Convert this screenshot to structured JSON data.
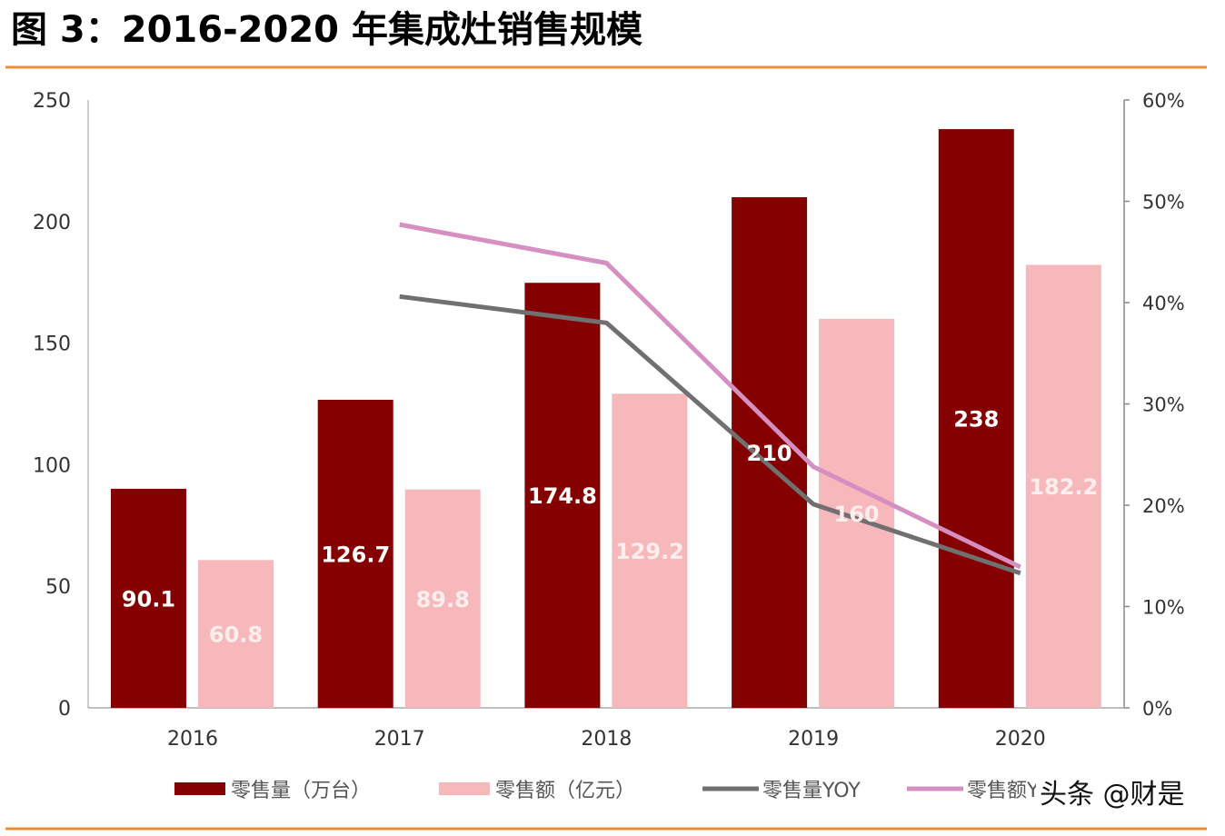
{
  "chart_data": {
    "type": "bar",
    "title": "图 3：2016-2020 年集成灶销售规模",
    "categories": [
      "2016",
      "2017",
      "2018",
      "2019",
      "2020"
    ],
    "y_left": {
      "range": [
        0,
        250
      ],
      "ticks": [
        "0",
        "50",
        "100",
        "150",
        "200",
        "250"
      ]
    },
    "y_right": {
      "range": [
        0,
        60
      ],
      "ticks": [
        "0%",
        "10%",
        "20%",
        "30%",
        "40%",
        "50%",
        "60%"
      ]
    },
    "series": [
      {
        "name": "零售量（万台）",
        "kind": "bar",
        "axis": "left",
        "color": "#850000",
        "values": [
          90.1,
          126.7,
          174.8,
          210,
          238
        ],
        "labels": [
          "90.1",
          "126.7",
          "174.8",
          "210",
          "238"
        ]
      },
      {
        "name": "零售额（亿元）",
        "kind": "bar",
        "axis": "left",
        "color": "#f7b8bb",
        "values": [
          60.8,
          89.8,
          129.2,
          160,
          182.2
        ],
        "labels": [
          "60.8",
          "89.8",
          "129.2",
          "160",
          "182.2"
        ]
      },
      {
        "name": "零售量YOY",
        "kind": "line",
        "axis": "right",
        "color": "#707070",
        "values": [
          null,
          40.6,
          38.0,
          20.1,
          13.3
        ]
      },
      {
        "name": "零售额YOY",
        "kind": "line",
        "axis": "right",
        "color": "#d58fc0",
        "values": [
          null,
          47.7,
          43.9,
          23.8,
          13.9
        ]
      }
    ],
    "grid": false,
    "legend": "bottom"
  },
  "watermark": "头条 @财是",
  "accent_color": "#e8903a"
}
